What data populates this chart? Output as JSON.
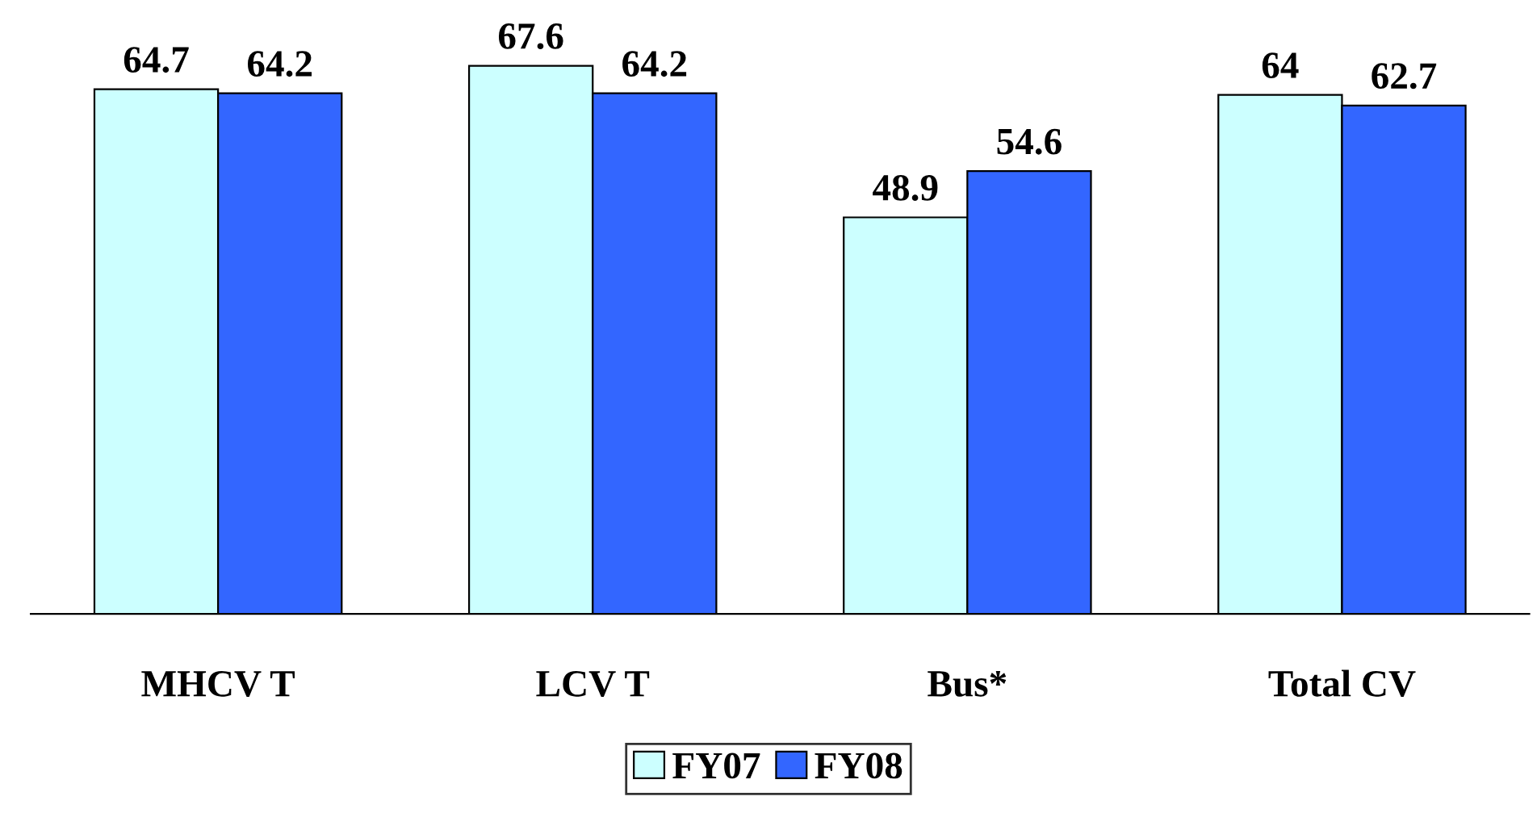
{
  "chart_data": {
    "type": "bar",
    "categories": [
      "MHCV T",
      "LCV T",
      "Bus*",
      "Total CV"
    ],
    "series": [
      {
        "name": "FY07",
        "color": "#ccffff",
        "values": [
          64.7,
          67.6,
          48.9,
          64
        ]
      },
      {
        "name": "FY08",
        "color": "#3366ff",
        "values": [
          64.2,
          64.2,
          54.6,
          62.7
        ]
      }
    ],
    "data_labels": true,
    "legend": "bottom",
    "grid": false
  }
}
